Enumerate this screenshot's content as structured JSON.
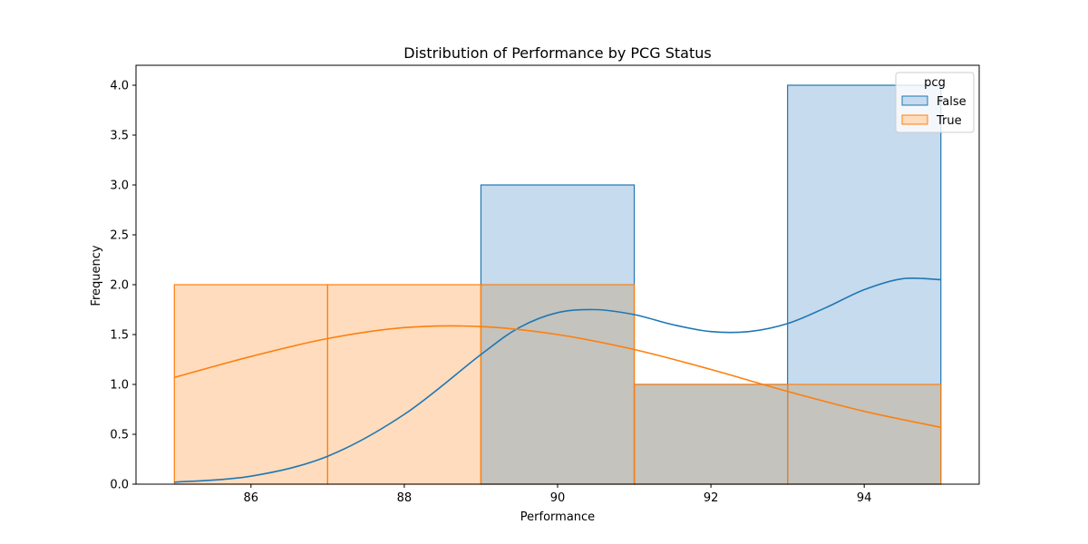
{
  "chart_data": {
    "type": "histogram",
    "title": "Distribution of Performance by PCG Status",
    "xlabel": "Performance",
    "ylabel": "Frequency",
    "xlim": [
      84.5,
      95.5
    ],
    "ylim": [
      0,
      4.2
    ],
    "xticks": [
      86,
      88,
      90,
      92,
      94
    ],
    "yticks": [
      0.0,
      0.5,
      1.0,
      1.5,
      2.0,
      2.5,
      3.0,
      3.5,
      4.0
    ],
    "bin_edges": [
      85,
      87,
      89,
      91,
      93,
      95
    ],
    "legend": {
      "title": "pcg",
      "placement": "top-right"
    },
    "series": [
      {
        "name": "False",
        "color": "#1f77b4",
        "fill": "#c6dbed",
        "counts": [
          0,
          0,
          3,
          1,
          4
        ],
        "kde": {
          "x": [
            85,
            86,
            87,
            88,
            89,
            89.5,
            90,
            90.5,
            91,
            91.5,
            92,
            92.5,
            93,
            93.5,
            94,
            94.5,
            95
          ],
          "y": [
            0.02,
            0.08,
            0.28,
            0.7,
            1.3,
            1.57,
            1.72,
            1.75,
            1.7,
            1.6,
            1.53,
            1.53,
            1.61,
            1.77,
            1.95,
            2.06,
            2.05
          ]
        }
      },
      {
        "name": "True",
        "color": "#ff7f0e",
        "fill": "#fedcbd",
        "counts": [
          2,
          2,
          2,
          1,
          1
        ],
        "kde": {
          "x": [
            85,
            86,
            87,
            88,
            89,
            90,
            91,
            92,
            93,
            94,
            95
          ],
          "y": [
            1.07,
            1.28,
            1.46,
            1.57,
            1.58,
            1.5,
            1.35,
            1.15,
            0.93,
            0.73,
            0.57
          ]
        }
      }
    ],
    "overlap_fill": "#c4c3bd"
  }
}
